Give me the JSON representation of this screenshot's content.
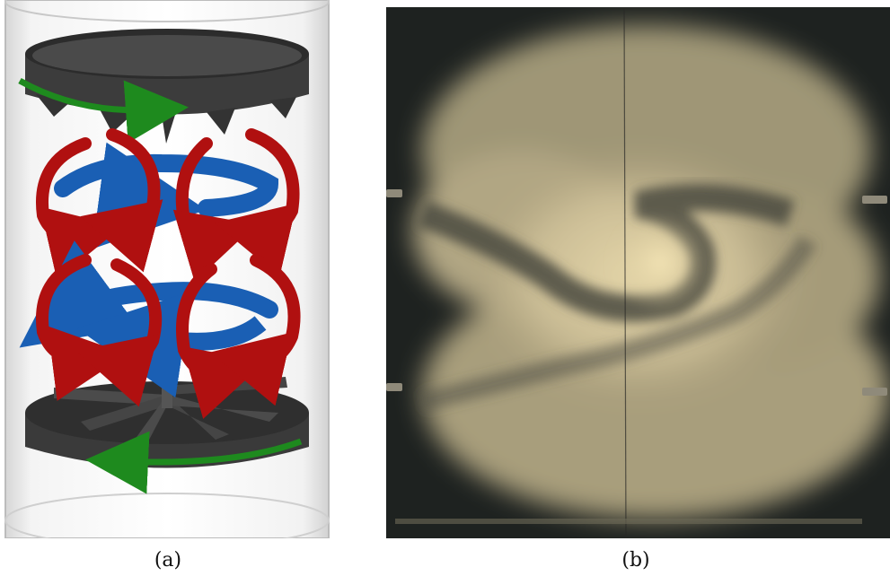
{
  "figure": {
    "panels": [
      {
        "id": "a",
        "caption": "(a)",
        "content": "von-karman-flow-schematic"
      },
      {
        "id": "b",
        "caption": "(b)",
        "content": "flow-visualization-photograph"
      }
    ],
    "colors": {
      "disk": "#3a3a3a",
      "rotation_arrow": "#1e8a1e",
      "poloidal_arrow": "#b01010",
      "toroidal_arrow": "#1a5fb4",
      "cylinder": "#e6e6e6",
      "photo_background": "#1e2220",
      "photo_flow": "#d8c9a0"
    }
  }
}
